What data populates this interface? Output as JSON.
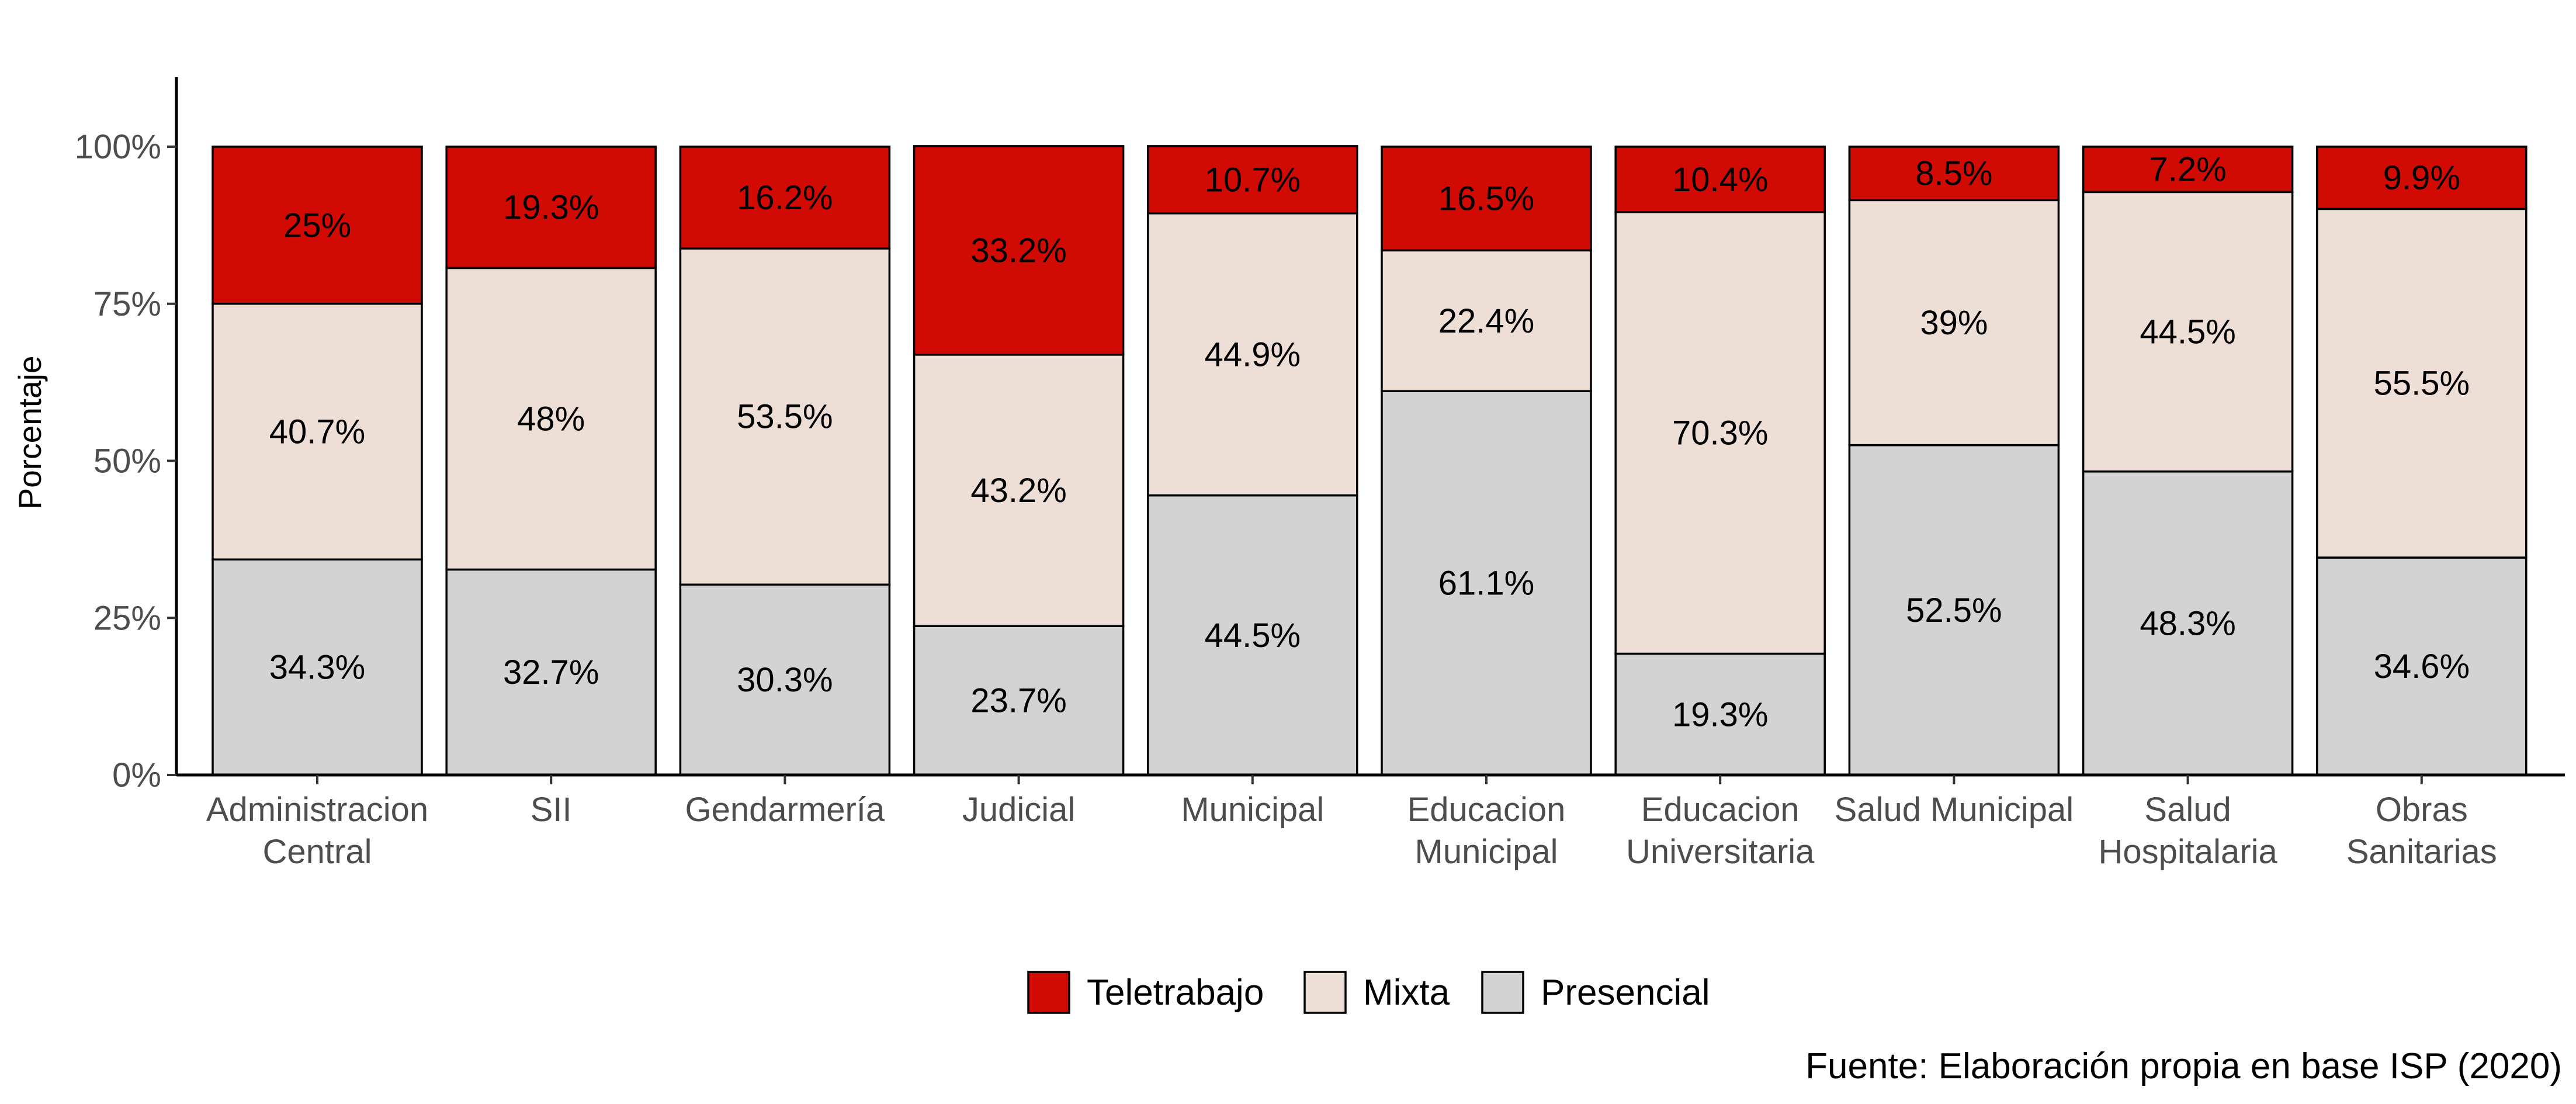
{
  "chart_data": {
    "type": "bar",
    "stacked": true,
    "percent": true,
    "categories": [
      [
        "Administracion",
        "Central"
      ],
      [
        "SII"
      ],
      [
        "Gendarmería"
      ],
      [
        "Judicial"
      ],
      [
        "Municipal"
      ],
      [
        "Educacion",
        "Municipal"
      ],
      [
        "Educacion",
        "Universitaria"
      ],
      [
        "Salud Municipal"
      ],
      [
        "Salud",
        "Hospitalaria"
      ],
      [
        "Obras",
        "Sanitarias"
      ]
    ],
    "series": [
      {
        "name": "Presencial",
        "color": "#d3d3d3",
        "values": [
          34.3,
          32.7,
          30.3,
          23.7,
          44.5,
          61.1,
          19.3,
          52.5,
          48.3,
          34.6
        ],
        "labels": [
          "34.3%",
          "32.7%",
          "30.3%",
          "23.7%",
          "44.5%",
          "61.1%",
          "19.3%",
          "52.5%",
          "48.3%",
          "34.6%"
        ]
      },
      {
        "name": "Mixta",
        "color": "#eedfd6",
        "values": [
          40.7,
          48,
          53.5,
          43.2,
          44.9,
          22.4,
          70.3,
          39,
          44.5,
          55.5
        ],
        "labels": [
          "40.7%",
          "48%",
          "53.5%",
          "43.2%",
          "44.9%",
          "22.4%",
          "70.3%",
          "39%",
          "44.5%",
          "55.5%"
        ]
      },
      {
        "name": "Teletrabajo",
        "color": "#d20a04",
        "values": [
          25,
          19.3,
          16.2,
          33.2,
          10.7,
          16.5,
          10.4,
          8.5,
          7.2,
          9.9
        ],
        "labels": [
          "25%",
          "19.3%",
          "16.2%",
          "33.2%",
          "10.7%",
          "16.5%",
          "10.4%",
          "8.5%",
          "7.2%",
          "9.9%"
        ]
      }
    ],
    "legend_order": [
      "Teletrabajo",
      "Mixta",
      "Presencial"
    ],
    "legend_position": "bottom",
    "ylabel": "Porcentaje",
    "xlabel": "",
    "yticks": [
      "0%",
      "25%",
      "50%",
      "75%",
      "100%"
    ],
    "ylim": [
      0,
      100
    ],
    "grid": false,
    "caption": "Fuente: Elaboración propia en base ISP (2020)"
  }
}
